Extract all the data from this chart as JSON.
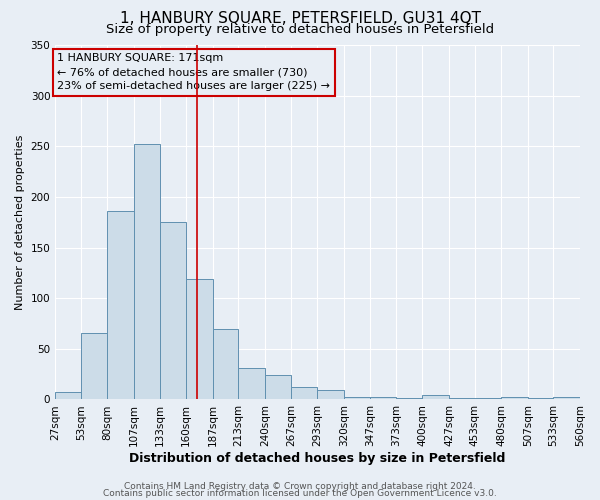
{
  "title": "1, HANBURY SQUARE, PETERSFIELD, GU31 4QT",
  "subtitle": "Size of property relative to detached houses in Petersfield",
  "xlabel": "Distribution of detached houses by size in Petersfield",
  "ylabel": "Number of detached properties",
  "footer_line1": "Contains HM Land Registry data © Crown copyright and database right 2024.",
  "footer_line2": "Contains public sector information licensed under the Open Government Licence v3.0.",
  "annotation_line1": "1 HANBURY SQUARE: 171sqm",
  "annotation_line2": "← 76% of detached houses are smaller (730)",
  "annotation_line3": "23% of semi-detached houses are larger (225) →",
  "vline_x": 171,
  "bin_edges": [
    27,
    53,
    80,
    107,
    133,
    160,
    187,
    213,
    240,
    267,
    293,
    320,
    347,
    373,
    400,
    427,
    453,
    480,
    507,
    533,
    560
  ],
  "bin_heights": [
    7,
    66,
    186,
    252,
    175,
    119,
    70,
    31,
    24,
    12,
    9,
    2,
    2,
    1,
    4,
    1,
    1,
    2,
    1,
    2
  ],
  "bar_facecolor": "#ccdce8",
  "bar_edgecolor": "#6090b0",
  "vline_color": "#cc0000",
  "annotation_box_edgecolor": "#cc0000",
  "background_color": "#e8eef5",
  "ylim": [
    0,
    350
  ],
  "yticks": [
    0,
    50,
    100,
    150,
    200,
    250,
    300,
    350
  ],
  "grid_color": "#ffffff",
  "title_fontsize": 11,
  "subtitle_fontsize": 9.5,
  "xlabel_fontsize": 9,
  "ylabel_fontsize": 8,
  "tick_fontsize": 7.5,
  "annotation_fontsize": 8,
  "footer_fontsize": 6.5
}
